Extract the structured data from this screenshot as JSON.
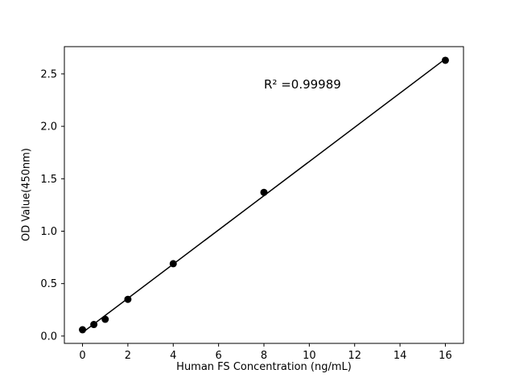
{
  "chart_data": {
    "type": "scatter",
    "title": "",
    "xlabel": "Human FS Concentration (ng/mL)",
    "ylabel": "OD Value(450nm)",
    "x": [
      0,
      0.5,
      1,
      2,
      4,
      8,
      16
    ],
    "y": [
      0.06,
      0.11,
      0.16,
      0.35,
      0.69,
      1.37,
      2.63
    ],
    "fit_line": true,
    "xlim": [
      -0.8,
      16.8
    ],
    "ylim": [
      -0.07,
      2.76
    ],
    "xtick_values": [
      0,
      2,
      4,
      6,
      8,
      10,
      12,
      14,
      16
    ],
    "xtick_labels": [
      "0",
      "2",
      "4",
      "6",
      "8",
      "10",
      "12",
      "14",
      "16"
    ],
    "ytick_values": [
      0,
      0.5,
      1,
      1.5,
      2,
      2.5
    ],
    "ytick_labels": [
      "0.0",
      "0.5",
      "1.0",
      "1.5",
      "2.0",
      "2.5"
    ],
    "grid": false,
    "legend_position": "none",
    "colors": {
      "marker": "#000000",
      "line": "#000000",
      "axis": "#000000",
      "background": "#ffffff"
    },
    "annotation": {
      "text": "R² =0.99989",
      "x": 8.0,
      "y": 2.38
    }
  }
}
